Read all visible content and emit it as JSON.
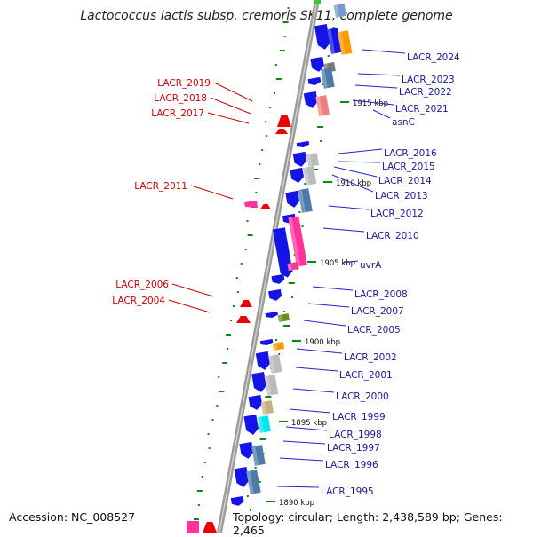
{
  "title": "Lactococcus lactis subsp. cremoris SK11, complete genome",
  "footer": {
    "accession": "Accession: NC_008527",
    "topology": "Topology: circular; Length: 2,438,589 bp; Genes: 2,465"
  },
  "colors": {
    "forward": "#1414e6",
    "reverse": "#ee0000",
    "rna": "#ff3399",
    "backbone": "#8c8c8c",
    "dots": "#0a8a0a",
    "label_right": "#1a1a99",
    "label_left": "#cc0000"
  },
  "ticks": [
    "1915 kbp",
    "1910 kbp",
    "1905 kbp",
    "1900 kbp",
    "1895 kbp",
    "1890 kbp"
  ],
  "labels_right": [
    "LACR_2024",
    "LACR_2023",
    "LACR_2022",
    "LACR_2021",
    "asnC",
    "LACR_2016",
    "LACR_2015",
    "LACR_2014",
    "LACR_2013",
    "LACR_2012",
    "LACR_2010",
    "uvrA",
    "LACR_2008",
    "LACR_2007",
    "LACR_2005",
    "LACR_2002",
    "LACR_2001",
    "LACR_2000",
    "LACR_1999",
    "LACR_1998",
    "LACR_1997",
    "LACR_1996",
    "LACR_1995"
  ],
  "labels_left": [
    "LACR_2019",
    "LACR_2018",
    "LACR_2017",
    "LACR_2011",
    "LACR_2006",
    "LACR_2004"
  ]
}
